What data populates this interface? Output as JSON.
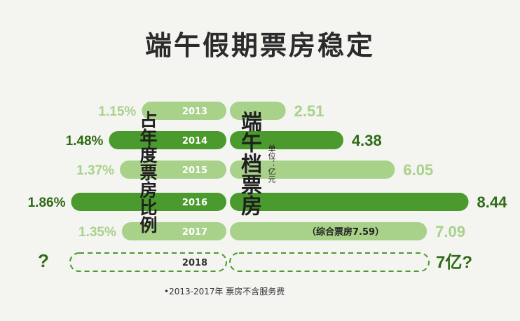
{
  "title": "端午假期票房稳定",
  "left_vertical_label": "占年度票房比例",
  "right_vertical_label": "端午档票房",
  "unit_label": "单位：亿元",
  "footnote": "•2013-2017年 票房不含服务费",
  "colors": {
    "light": "#a8d18a",
    "dark": "#4a9a2d",
    "light_text": "#a8d18a",
    "dark_text": "#2f6b17",
    "dashed": "#4a9a2d"
  },
  "chart_data": {
    "type": "bar",
    "categories": [
      "2013",
      "2014",
      "2015",
      "2016",
      "2017",
      "2018"
    ],
    "series": [
      {
        "name": "占年度票房比例",
        "values": [
          1.15,
          1.48,
          1.37,
          1.86,
          1.35,
          null
        ],
        "labels": [
          "1.15%",
          "1.48%",
          "1.37%",
          "1.86%",
          "1.35%",
          "?"
        ]
      },
      {
        "name": "端午档票房",
        "values": [
          2.51,
          4.38,
          6.05,
          8.44,
          7.09,
          7
        ],
        "labels": [
          "2.51",
          "4.38",
          "6.05",
          "8.44",
          "7.09",
          "7亿?"
        ]
      }
    ],
    "highlight": [
      "2014",
      "2016"
    ],
    "forecast": [
      "2018"
    ],
    "annotation": {
      "category": "2017",
      "text": "（综合票房7.59）"
    }
  }
}
